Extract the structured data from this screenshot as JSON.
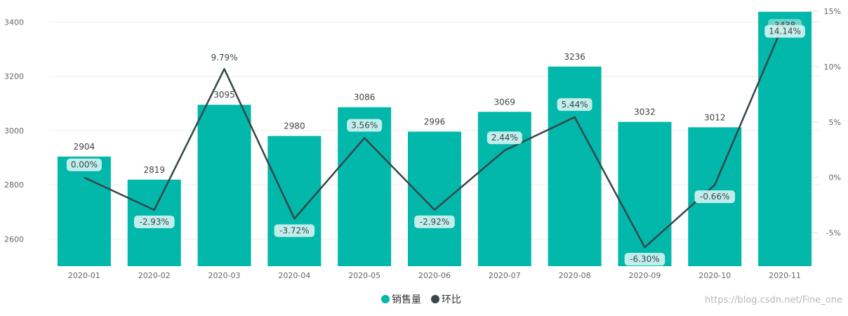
{
  "chart_data": {
    "type": "bar",
    "categories": [
      "2020-01",
      "2020-02",
      "2020-03",
      "2020-04",
      "2020-05",
      "2020-06",
      "2020-07",
      "2020-08",
      "2020-09",
      "2020-10",
      "2020-11"
    ],
    "series": [
      {
        "name": "销售量",
        "type": "bar",
        "axis": "left",
        "color": "#01b8aa",
        "values": [
          2904,
          2819,
          3095,
          2980,
          3086,
          2996,
          3069,
          3236,
          3032,
          3012,
          3438
        ],
        "labels": [
          "2904",
          "2819",
          "3095",
          "2980",
          "3086",
          "2996",
          "3069",
          "3236",
          "3032",
          "3012",
          "3438"
        ]
      },
      {
        "name": "环比",
        "type": "line",
        "axis": "right",
        "color": "#374649",
        "values": [
          0.0,
          -2.93,
          9.79,
          -3.72,
          3.56,
          -2.92,
          2.44,
          5.44,
          -6.3,
          -0.66,
          14.14
        ],
        "labels": [
          "0.00%",
          "-2.93%",
          "9.79%",
          "-3.72%",
          "3.56%",
          "-2.92%",
          "2.44%",
          "5.44%",
          "-6.30%",
          "-0.66%",
          "14.14%"
        ]
      }
    ],
    "y_left": {
      "ticks": [
        2600,
        2800,
        3000,
        3200,
        3400
      ],
      "ylim": [
        2500,
        3440
      ]
    },
    "y_right": {
      "ticks": [
        -5,
        0,
        5,
        10,
        15
      ],
      "tick_labels": [
        "-5%",
        "0%",
        "5%",
        "10%",
        "15%"
      ],
      "ylim": [
        -8.0,
        15.0
      ]
    },
    "grid": true,
    "legend_position": "bottom-center",
    "xlabel": "",
    "ylabel": ""
  },
  "watermark": "https://blog.csdn.net/Fine_one"
}
